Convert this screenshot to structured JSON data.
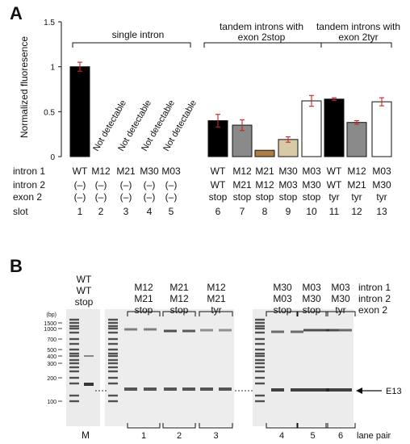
{
  "panel_a_label": "A",
  "panel_b_label": "B",
  "chart_data": {
    "type": "bar",
    "ylabel": "Normalized fluoresence",
    "yticks": [
      "0",
      "0.5",
      "1",
      "1.5"
    ],
    "ylim": [
      0,
      1.5
    ],
    "slots": [
      1,
      2,
      3,
      4,
      5,
      6,
      7,
      8,
      9,
      10,
      11,
      12,
      13
    ],
    "values": [
      1.0,
      null,
      null,
      null,
      null,
      0.4,
      0.35,
      0.07,
      0.19,
      0.62,
      0.64,
      0.38,
      0.61
    ],
    "errors": [
      0.05,
      null,
      null,
      null,
      null,
      0.07,
      0.06,
      0.0,
      0.03,
      0.06,
      0.015,
      0.02,
      0.045
    ],
    "bar_colors": [
      "#000000",
      null,
      null,
      null,
      null,
      "#000000",
      "#8a8a8a",
      "#b07c45",
      "#d8caa6",
      "#ffffff",
      "#000000",
      "#8a8a8a",
      "#ffffff"
    ],
    "error_color": "#cc2222",
    "not_detectable_label": "Not detectable",
    "groups": [
      "single intron",
      "tandem introns with\nexon 2stop",
      "tandem introns with\nexon 2tyr"
    ],
    "row_labels": [
      "intron 1",
      "intron 2",
      "exon 2",
      "slot"
    ],
    "intron1": [
      "WT",
      "M12",
      "M21",
      "M30",
      "M03",
      "WT",
      "M12",
      "M21",
      "M30",
      "M03",
      "WT",
      "M12",
      "M03"
    ],
    "intron2": [
      "(–)",
      "(–)",
      "(–)",
      "(–)",
      "(–)",
      "WT",
      "M21",
      "M12",
      "M03",
      "M30",
      "WT",
      "M21",
      "M30"
    ],
    "exon2": [
      "(–)",
      "(–)",
      "(–)",
      "(–)",
      "(–)",
      "stop",
      "stop",
      "stop",
      "stop",
      "stop",
      "tyr",
      "tyr",
      "tyr"
    ]
  },
  "gel": {
    "bp_unit": "(bp)",
    "ladder": [
      "1500",
      "1000",
      "700",
      "500",
      "400",
      "300",
      "200",
      "100"
    ],
    "left_header": [
      "WT",
      "WT",
      "stop"
    ],
    "group_headers": [
      [
        "M12",
        "M21",
        "stop"
      ],
      [
        "M21",
        "M12",
        "stop"
      ],
      [
        "M12",
        "M21",
        "tyr"
      ],
      [
        "M30",
        "M03",
        "stop"
      ],
      [
        "M03",
        "M30",
        "stop"
      ],
      [
        "M03",
        "M30",
        "tyr"
      ]
    ],
    "row_labels": [
      "intron 1",
      "intron 2",
      "exon 2"
    ],
    "marker_label": "M",
    "lane_pairs": [
      "1",
      "2",
      "3",
      "4",
      "5",
      "6"
    ],
    "lane_pair_label": "lane pair",
    "band_label": "E13"
  }
}
